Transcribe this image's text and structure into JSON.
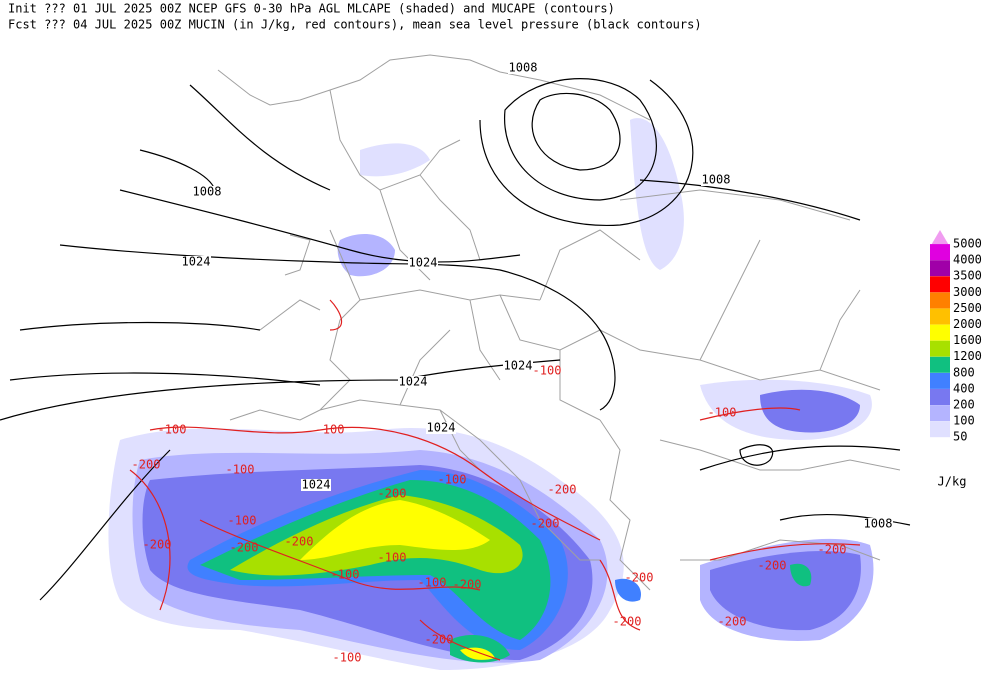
{
  "header": {
    "line1": "Init  ??? 01 JUL 2025 00Z  NCEP GFS 0-30 hPa AGL MLCAPE (shaded) and MUCAPE (contours)",
    "line2": "Fcst ??? 04 JUL 2025 00Z  MUCIN (in J/kg, red contours), mean sea level pressure (black contours)"
  },
  "legend": {
    "unit": "J/kg",
    "levels": [
      {
        "label": "5000",
        "color": "#f09cf0"
      },
      {
        "label": "4000",
        "color": "#e000e0"
      },
      {
        "label": "3500",
        "color": "#a000a8"
      },
      {
        "label": "3000",
        "color": "#ff0000"
      },
      {
        "label": "2500",
        "color": "#ff8000"
      },
      {
        "label": "2000",
        "color": "#ffc000"
      },
      {
        "label": "1600",
        "color": "#ffff00"
      },
      {
        "label": "1200",
        "color": "#a8e000"
      },
      {
        "label": "800",
        "color": "#10c080"
      },
      {
        "label": "400",
        "color": "#4080ff"
      },
      {
        "label": "200",
        "color": "#7878f0"
      },
      {
        "label": "100",
        "color": "#b4b4ff"
      },
      {
        "label": "50",
        "color": "#e0e0ff"
      }
    ]
  },
  "pressure_labels": [
    "1008",
    "1008",
    "1008",
    "1024",
    "1024",
    "1024",
    "1024",
    "1024",
    "1024",
    "1008"
  ],
  "cin_labels": [
    "-100",
    "-200",
    "-100",
    "-100",
    "-200",
    "-100",
    "-100",
    "-100",
    "-200",
    "-200",
    "-100",
    "-200",
    "-200",
    "-200",
    "-100",
    "-100",
    "-100",
    "-200",
    "-200",
    "-200",
    "-200",
    "-200",
    "-200",
    "-200",
    "-100"
  ]
}
